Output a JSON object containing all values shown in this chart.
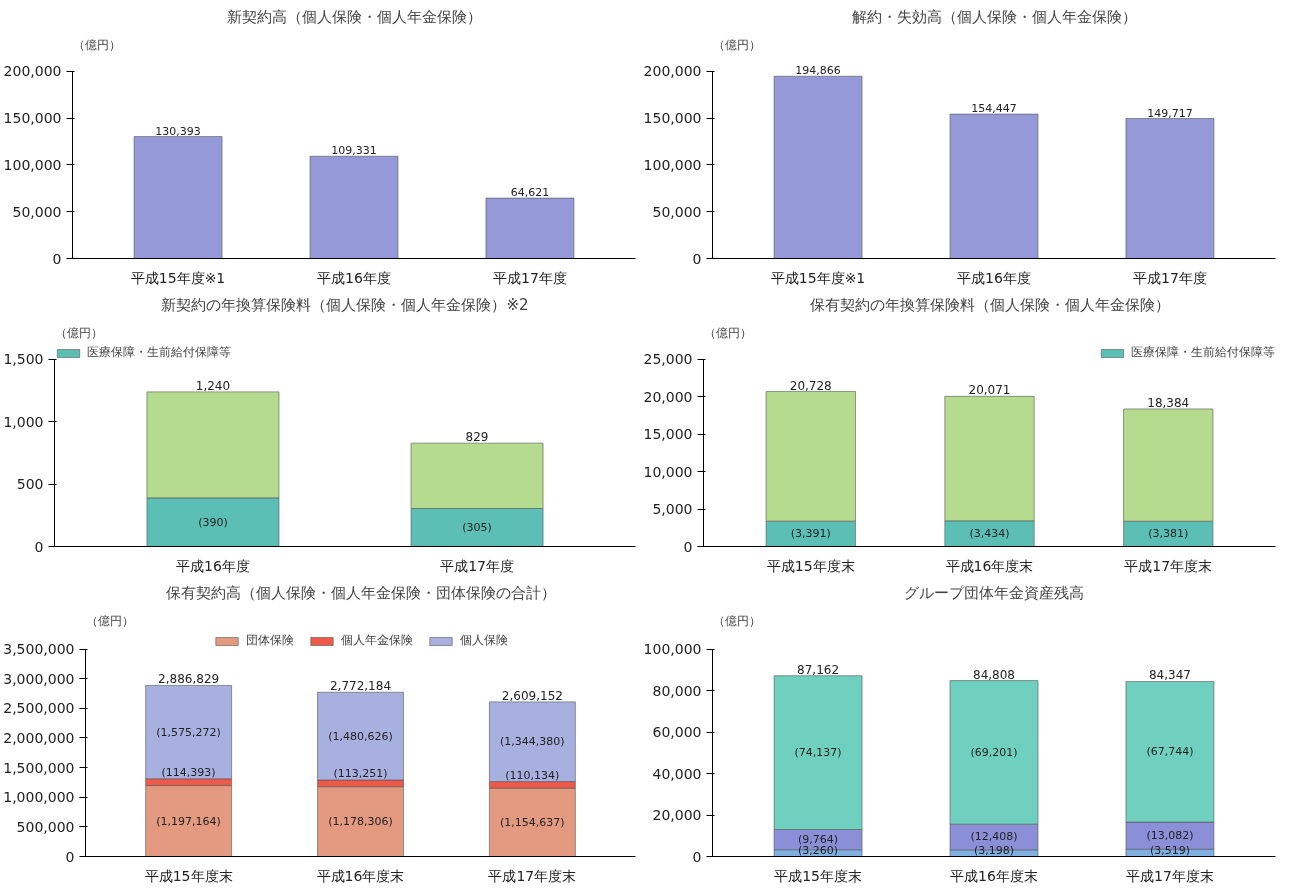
{
  "chart_data": [
    {
      "type": "bar",
      "title": "新契約高（個人保険・個人年金保険）",
      "ylabel": "（億円）",
      "categories": [
        "平成15年度※1",
        "平成16年度",
        "平成17年度"
      ],
      "values": [
        130393,
        109331,
        64621
      ],
      "value_labels": [
        "130,393",
        "109,331",
        "64,621"
      ],
      "color": "#9599d8",
      "ylim": [
        0,
        200000
      ],
      "yticks": [
        0,
        {
          "value": 50000,
          "label": "50,000"
        },
        {
          "value": 100000,
          "label": "100,000"
        },
        {
          "value": 150000,
          "label": "150,000"
        },
        {
          "value": 200000,
          "label": "200,000"
        }
      ],
      "grid": false
    },
    {
      "type": "bar",
      "title": "解約・失効高（個人保険・個人年金保険）",
      "ylabel": "（億円）",
      "categories": [
        "平成15年度※1",
        "平成16年度",
        "平成17年度"
      ],
      "values": [
        194866,
        154447,
        149717
      ],
      "value_labels": [
        "194,866",
        "154,447",
        "149,717"
      ],
      "color": "#9599d8",
      "ylim": [
        0,
        200000
      ],
      "yticks": [
        0,
        {
          "value": 50000,
          "label": "50,000"
        },
        {
          "value": 100000,
          "label": "100,000"
        },
        {
          "value": 150000,
          "label": "150,000"
        },
        {
          "value": 200000,
          "label": "200,000"
        }
      ],
      "grid": false
    },
    {
      "type": "bar",
      "title": "新契約の年換算保険料（個人保険・個人年金保険）※2",
      "ylabel": "（億円）",
      "categories": [
        "平成16年度",
        "平成17年度"
      ],
      "stacked": true,
      "legend": "top left",
      "series": [
        {
          "name": "医療保障・生前給付保障等",
          "color": "#5cbfb5",
          "values": [
            390,
            305
          ],
          "value_labels": [
            "(390)",
            "(305)"
          ]
        },
        {
          "color": "#b5db8e",
          "values": [
            850,
            524
          ]
        }
      ],
      "totals": [
        "1,240",
        "829"
      ],
      "ylim": [
        0,
        1500
      ],
      "yticks": [
        0,
        500,
        {
          "value": 1000,
          "label": "1,000"
        },
        {
          "value": 1500,
          "label": "1,500"
        }
      ],
      "grid": false
    },
    {
      "type": "bar",
      "title": "保有契約の年換算保険料（個人保険・個人年金保険）",
      "ylabel": "（億円）",
      "categories": [
        "平成15年度末",
        "平成16年度末",
        "平成17年度末"
      ],
      "stacked": true,
      "legend": "top right",
      "series": [
        {
          "name": "医療保障・生前給付保障等",
          "color": "#5cbfb5",
          "values": [
            3391,
            3434,
            3381
          ],
          "value_labels": [
            "(3,391)",
            "(3,434)",
            "(3,381)"
          ]
        },
        {
          "color": "#b5db8e",
          "values": [
            17337,
            16637,
            15003
          ]
        }
      ],
      "totals": [
        "20,728",
        "20,071",
        "18,384"
      ],
      "ylim": [
        0,
        25000
      ],
      "yticks": [
        0,
        {
          "value": 5000,
          "label": "5,000"
        },
        {
          "value": 10000,
          "label": "10,000"
        },
        {
          "value": 15000,
          "label": "15,000"
        },
        {
          "value": 20000,
          "label": "20,000"
        },
        {
          "value": 25000,
          "label": "25,000"
        }
      ],
      "grid": false
    },
    {
      "type": "bar",
      "title": "保有契約高（個人保険・個人年金保険・団体保険の合計）",
      "ylabel": "（億円）",
      "categories": [
        "平成15年度末",
        "平成16年度末",
        "平成17年度末"
      ],
      "stacked": true,
      "legend": "top",
      "series": [
        {
          "name": "団体保険",
          "color": "#e39a80",
          "values": [
            1197164,
            1178306,
            1154637
          ],
          "value_labels": [
            "(1,197,164)",
            "(1,178,306)",
            "(1,154,637)"
          ]
        },
        {
          "name": "個人年金保険",
          "color": "#ee5a4a",
          "values": [
            114393,
            113251,
            110134
          ],
          "value_labels": [
            "(114,393)",
            "(113,251)",
            "(110,134)"
          ]
        },
        {
          "name": "個人保険",
          "color": "#a8b0e0",
          "values": [
            1575272,
            1480626,
            1344380
          ],
          "value_labels": [
            "(1,575,272)",
            "(1,480,626)",
            "(1,344,380)"
          ]
        }
      ],
      "totals": [
        "2,886,829",
        "2,772,184",
        "2,609,152"
      ],
      "ylim": [
        0,
        3500000
      ],
      "yticks": [
        0,
        {
          "value": 500000,
          "label": "500,000"
        },
        {
          "value": 1000000,
          "label": "1,000,000"
        },
        {
          "value": 1500000,
          "label": "1,500,000"
        },
        {
          "value": 2000000,
          "label": "2,000,000"
        },
        {
          "value": 2500000,
          "label": "2,500,000"
        },
        {
          "value": 3000000,
          "label": "3,000,000"
        },
        {
          "value": 3500000,
          "label": "3,500,000"
        }
      ],
      "grid": false
    },
    {
      "type": "bar",
      "title": "グループ団体年金資産残高",
      "ylabel": "（億円）",
      "categories": [
        "平成15年度末",
        "平成16年度末",
        "平成17年度末"
      ],
      "stacked": true,
      "series": [
        {
          "color": "#7fb0e0",
          "values": [
            3260,
            3198,
            3519
          ],
          "value_labels": [
            "(3,260)",
            "(3,198)",
            "(3,519)"
          ]
        },
        {
          "color": "#8a8fd8",
          "values": [
            9764,
            12408,
            13082
          ],
          "value_labels": [
            "(9,764)",
            "(12,408)",
            "(13,082)"
          ]
        },
        {
          "color": "#6fd0c0",
          "values": [
            74137,
            69201,
            67744
          ],
          "value_labels": [
            "(74,137)",
            "(69,201)",
            "(67,744)"
          ]
        }
      ],
      "totals": [
        "87,162",
        "84,808",
        "84,347"
      ],
      "ylim": [
        0,
        100000
      ],
      "yticks": [
        0,
        {
          "value": 20000,
          "label": "20,000"
        },
        {
          "value": 40000,
          "label": "40,000"
        },
        {
          "value": 60000,
          "label": "60,000"
        },
        {
          "value": 80000,
          "label": "80,000"
        },
        {
          "value": 100000,
          "label": "100,000"
        }
      ],
      "grid": false
    }
  ]
}
